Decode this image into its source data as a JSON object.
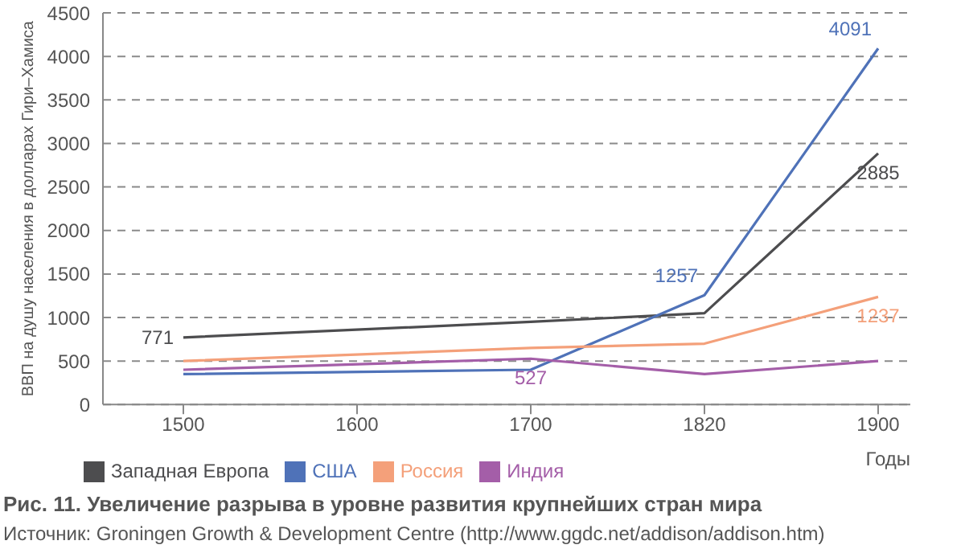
{
  "chart_data": {
    "type": "line",
    "title": "Рис. 11. Увеличение разрыва в уровне развития крупнейших стран мира",
    "ylabel": "ВВП на душу населения в долларах Гири–Хамиса",
    "xlabel": "Годы",
    "annotations": [
      "Источник: Groningen Growth & Development Centre (http://www.ggdc.net/addison/addison.htm)"
    ],
    "categories": [
      "1500",
      "1600",
      "1700",
      "1820",
      "1900"
    ],
    "series": [
      {
        "name": "Западная Европа",
        "color": "#4d4d4f",
        "values": [
          771,
          null,
          950,
          1050,
          2885
        ],
        "value_labels": [
          "771",
          null,
          null,
          null,
          "2885"
        ]
      },
      {
        "name": "США",
        "color": "#4f72b8",
        "values": [
          350,
          null,
          400,
          1257,
          4091
        ],
        "value_labels": [
          null,
          null,
          null,
          "1257",
          "4091"
        ]
      },
      {
        "name": "Россия",
        "color": "#f4a07a",
        "values": [
          500,
          null,
          650,
          700,
          1237
        ],
        "value_labels": [
          null,
          null,
          null,
          null,
          "1237"
        ]
      },
      {
        "name": "Индия",
        "color": "#a45ea8",
        "values": [
          400,
          null,
          527,
          350,
          500
        ],
        "value_labels": [
          null,
          null,
          "527",
          null,
          null
        ]
      }
    ],
    "ylim": [
      0,
      4500
    ],
    "yticks": [
      0,
      500,
      1000,
      1500,
      2000,
      2500,
      3000,
      3500,
      4000,
      4500
    ],
    "grid": "y",
    "legend": "bottom",
    "marker": "none",
    "line_style": "solid"
  }
}
